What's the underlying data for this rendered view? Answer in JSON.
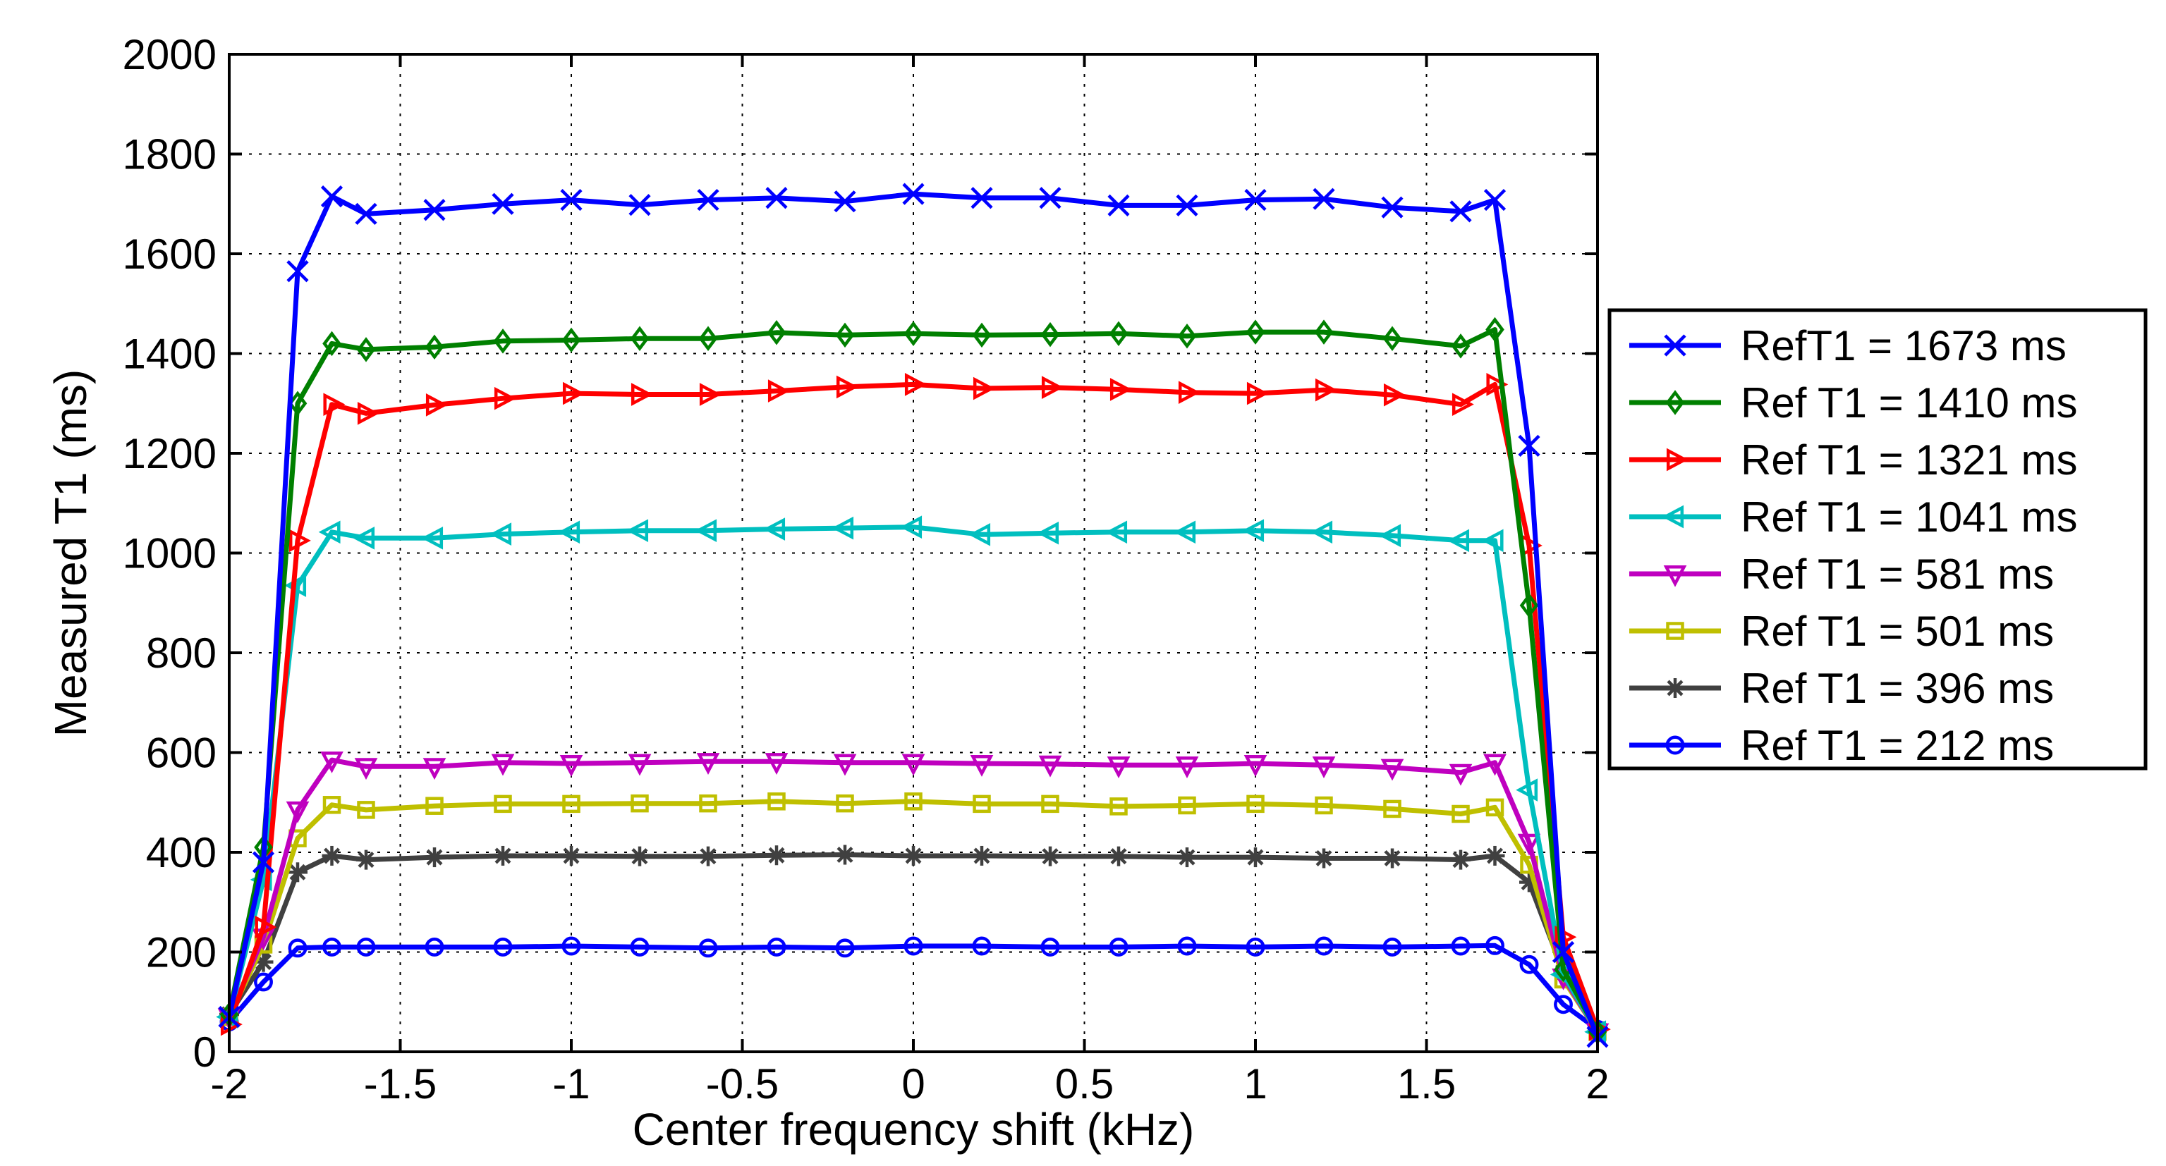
{
  "chart_data": {
    "type": "line",
    "title": "",
    "xlabel": "Center frequency shift (kHz)",
    "ylabel": "Measured T1 (ms)",
    "xlim": [
      -2,
      2
    ],
    "ylim": [
      0,
      2000
    ],
    "xticks": [
      -2,
      -1.5,
      -1,
      -0.5,
      0,
      0.5,
      1,
      1.5,
      2
    ],
    "xtick_labels": [
      "-2",
      "-1.5",
      "-1",
      "-0.5",
      "0",
      "0.5",
      "1",
      "1.5",
      "2"
    ],
    "yticks": [
      0,
      200,
      400,
      600,
      800,
      1000,
      1200,
      1400,
      1600,
      1800,
      2000
    ],
    "ytick_labels": [
      "0",
      "200",
      "400",
      "600",
      "800",
      "1000",
      "1200",
      "1400",
      "1600",
      "1800",
      "2000"
    ],
    "grid": true,
    "legend_position": "outside-right",
    "x": [
      -2,
      -1.9,
      -1.8,
      -1.7,
      -1.6,
      -1.4,
      -1.2,
      -1.0,
      -0.8,
      -0.6,
      -0.4,
      -0.2,
      0,
      0.2,
      0.4,
      0.6,
      0.8,
      1.0,
      1.2,
      1.4,
      1.6,
      1.7,
      1.8,
      1.9,
      2.0
    ],
    "series": [
      {
        "name": "RefT1 = 1673 ms",
        "color": "#0000ff",
        "marker": "x",
        "values": [
          70,
          380,
          1565,
          1715,
          1680,
          1688,
          1700,
          1708,
          1698,
          1708,
          1712,
          1705,
          1720,
          1712,
          1712,
          1697,
          1697,
          1708,
          1710,
          1693,
          1685,
          1708,
          1215,
          200,
          30
        ]
      },
      {
        "name": "Ref T1 = 1410 ms",
        "color": "#008000",
        "marker": "diamond",
        "values": [
          75,
          410,
          1300,
          1420,
          1408,
          1413,
          1425,
          1427,
          1430,
          1430,
          1442,
          1437,
          1440,
          1437,
          1438,
          1440,
          1435,
          1443,
          1443,
          1430,
          1415,
          1448,
          895,
          165,
          40
        ]
      },
      {
        "name": "Ref T1 = 1321 ms",
        "color": "#ff0000",
        "marker": "triangle-right",
        "values": [
          55,
          250,
          1025,
          1298,
          1280,
          1297,
          1310,
          1320,
          1318,
          1318,
          1325,
          1333,
          1338,
          1330,
          1332,
          1328,
          1322,
          1320,
          1327,
          1317,
          1298,
          1338,
          1015,
          230,
          45
        ]
      },
      {
        "name": "Ref T1 = 1041 ms",
        "color": "#00bfbf",
        "marker": "triangle-left",
        "values": [
          70,
          345,
          935,
          1042,
          1030,
          1030,
          1038,
          1042,
          1045,
          1045,
          1048,
          1050,
          1052,
          1037,
          1040,
          1042,
          1042,
          1045,
          1042,
          1035,
          1025,
          1025,
          525,
          155,
          40
        ]
      },
      {
        "name": "Ref T1 = 581 ms",
        "color": "#bf00bf",
        "marker": "triangle-down",
        "values": [
          70,
          230,
          485,
          585,
          572,
          572,
          580,
          578,
          580,
          582,
          582,
          580,
          580,
          578,
          577,
          575,
          575,
          578,
          575,
          570,
          560,
          580,
          420,
          150,
          40
        ]
      },
      {
        "name": "Ref T1 = 501 ms",
        "color": "#bfbf00",
        "marker": "square",
        "values": [
          70,
          215,
          428,
          495,
          485,
          493,
          497,
          497,
          498,
          498,
          502,
          498,
          502,
          497,
          497,
          492,
          494,
          497,
          494,
          487,
          477,
          490,
          375,
          145,
          40
        ]
      },
      {
        "name": "Ref T1 = 396 ms",
        "color": "#404040",
        "marker": "star",
        "values": [
          75,
          180,
          360,
          393,
          385,
          390,
          393,
          393,
          392,
          392,
          394,
          395,
          393,
          393,
          392,
          392,
          390,
          390,
          388,
          388,
          385,
          393,
          340,
          160,
          45
        ]
      },
      {
        "name": "Ref T1 = 212 ms",
        "color": "#0000ff",
        "marker": "circle",
        "values": [
          60,
          140,
          208,
          210,
          210,
          210,
          210,
          212,
          210,
          208,
          210,
          208,
          212,
          212,
          210,
          210,
          212,
          210,
          212,
          210,
          212,
          213,
          175,
          95,
          45
        ]
      }
    ]
  }
}
